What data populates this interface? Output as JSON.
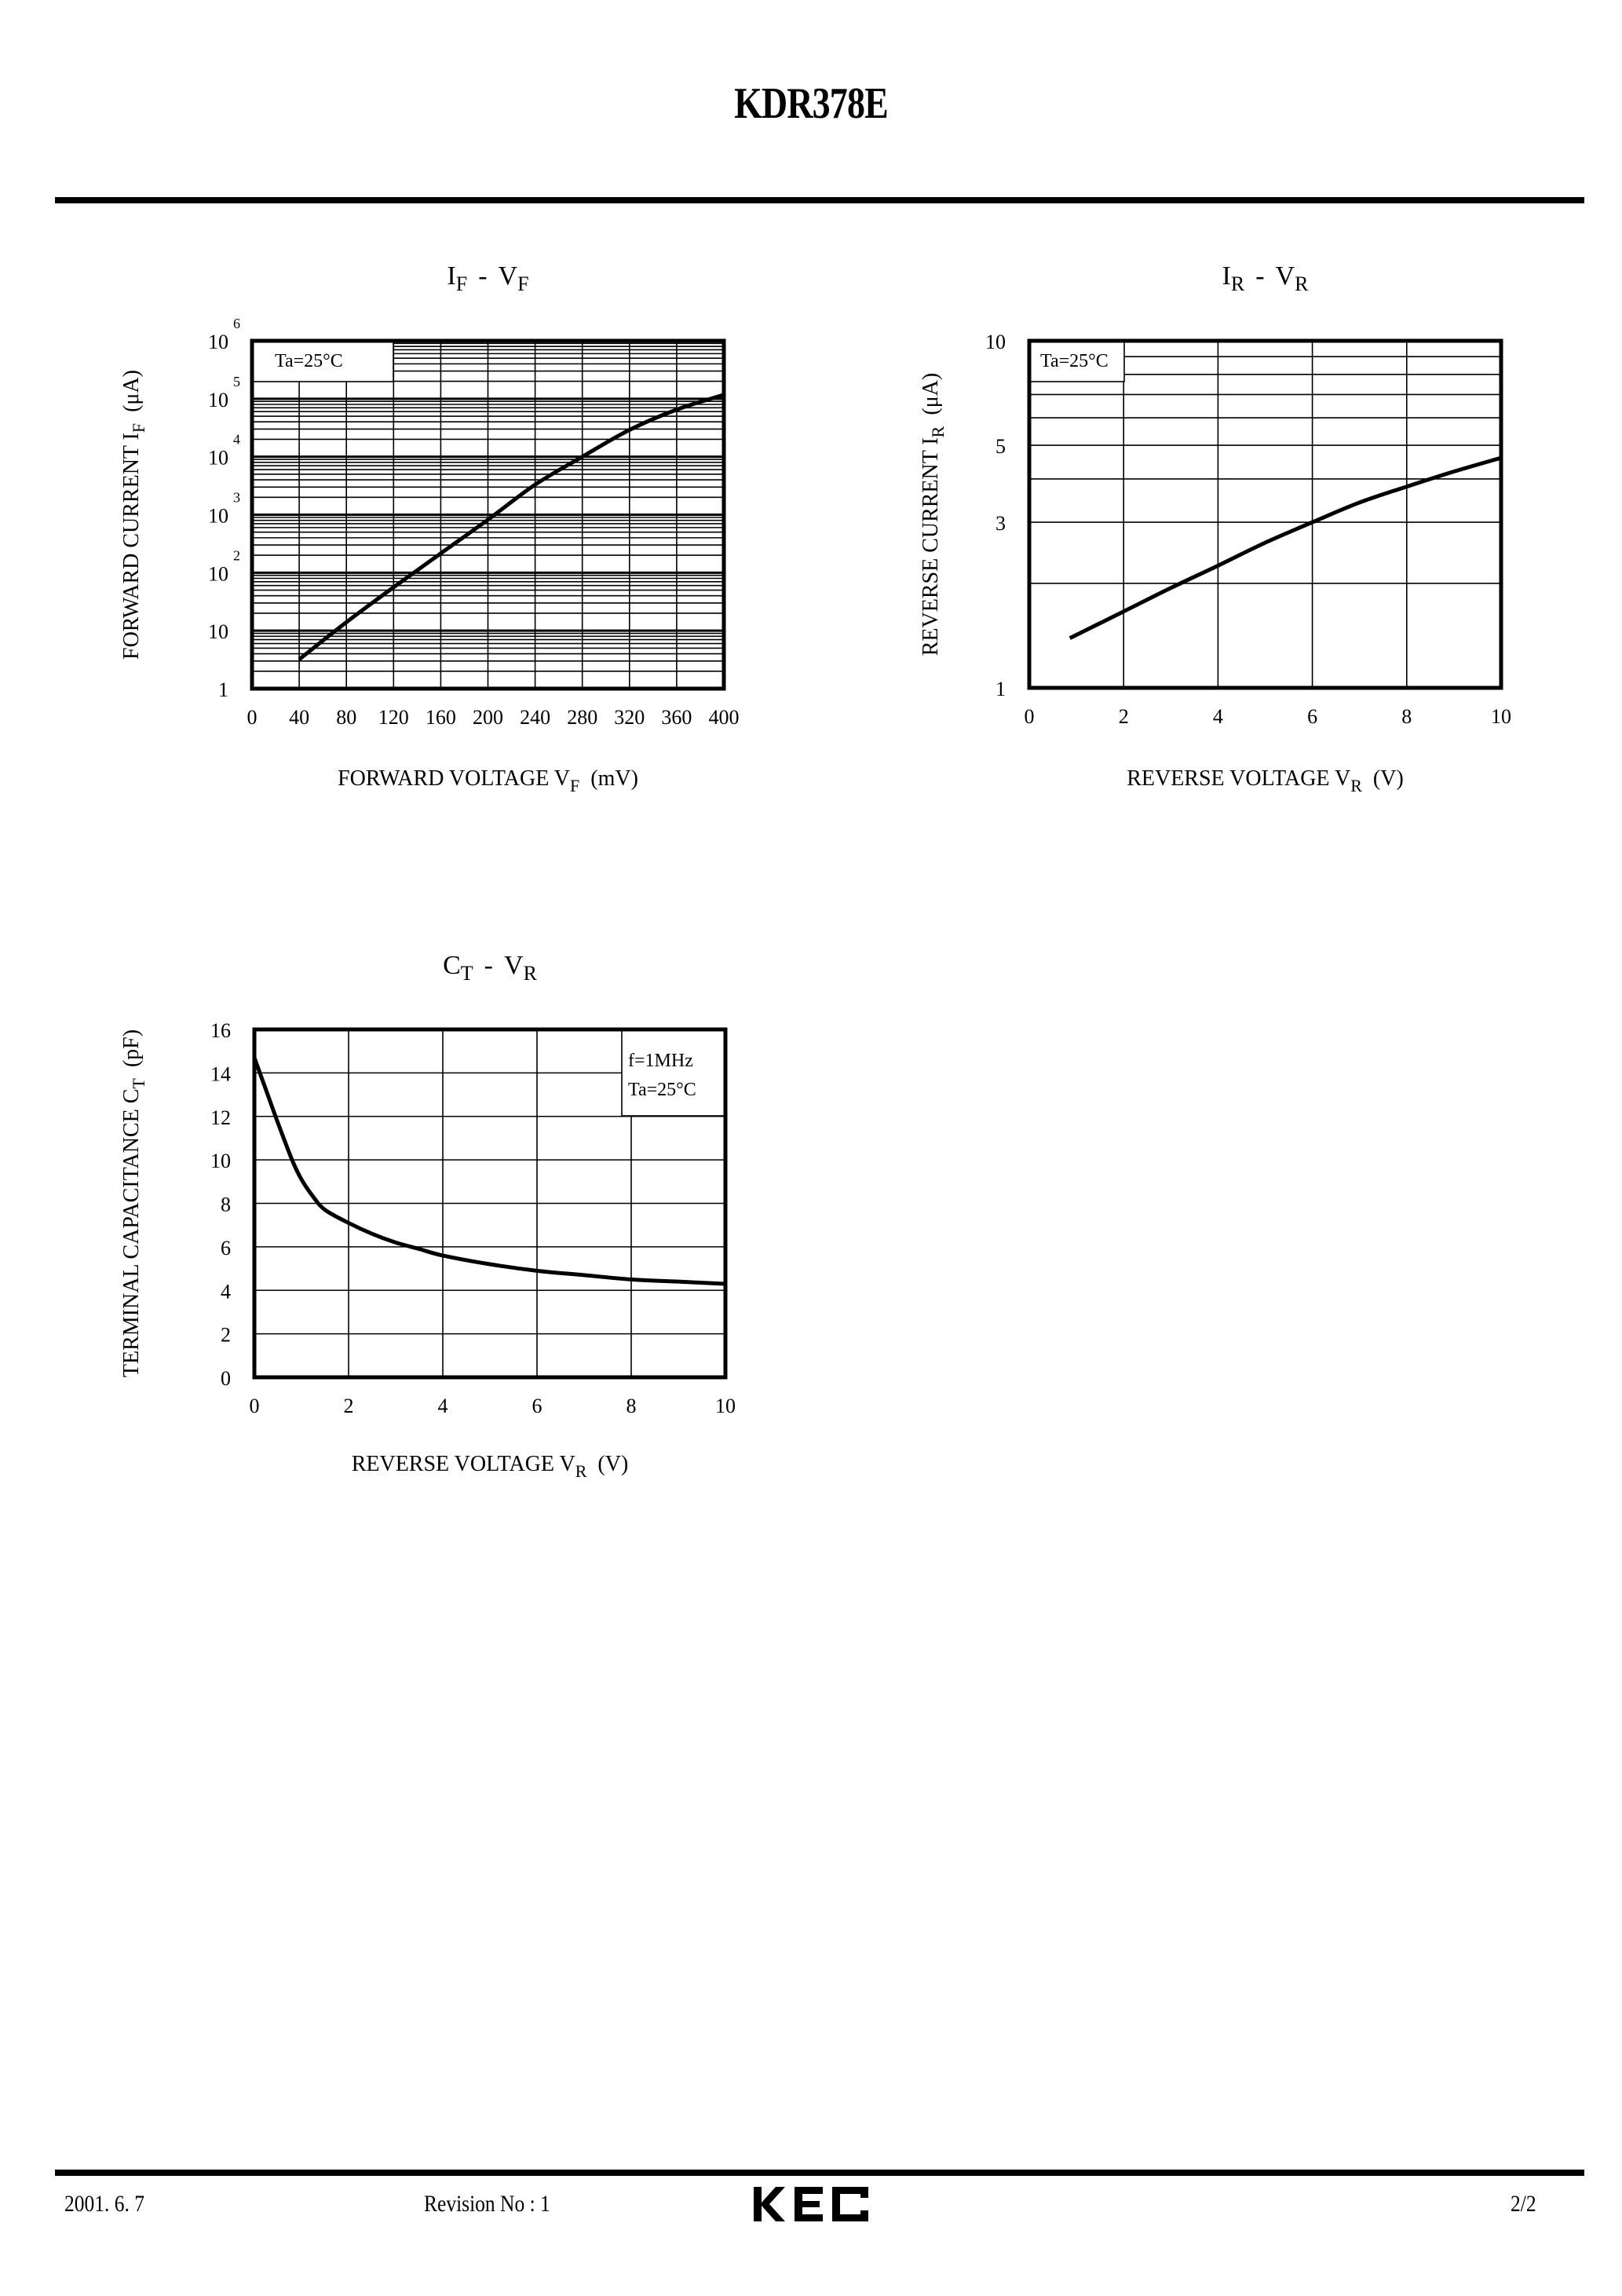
{
  "header": {
    "title": "KDR378E"
  },
  "footer": {
    "date": "2001. 6. 7",
    "revision": "Revision No : 1",
    "logo_text": "KEC",
    "page": "2/2"
  },
  "chart_data": [
    {
      "id": "if_vf",
      "type": "line",
      "title": "IF - VF",
      "title_main": "I",
      "title_sub": "F",
      "title_sep": "-",
      "title_main2": "V",
      "title_sub2": "F",
      "xlabel": "FORWARD VOLTAGE VF (mV)",
      "xlabel_main": "FORWARD VOLTAGE V",
      "xlabel_sub": "F",
      "xlabel_unit": "(mV)",
      "ylabel": "FORWARD CURRENT IF (μA)",
      "ylabel_main": "FORWARD CURRENT I",
      "ylabel_sub": "F",
      "ylabel_unit": "(μA)",
      "xscale": "linear",
      "yscale": "log",
      "xlim": [
        0,
        400
      ],
      "ylim": [
        1,
        1000000
      ],
      "xticks": [
        0,
        40,
        80,
        120,
        160,
        200,
        240,
        280,
        320,
        360,
        400
      ],
      "yticks": [
        {
          "v": 1,
          "base": "1",
          "exp": ""
        },
        {
          "v": 10,
          "base": "10",
          "exp": ""
        },
        {
          "v": 100,
          "base": "10",
          "exp": "2"
        },
        {
          "v": 1000,
          "base": "10",
          "exp": "3"
        },
        {
          "v": 10000,
          "base": "10",
          "exp": "4"
        },
        {
          "v": 100000,
          "base": "10",
          "exp": "5"
        },
        {
          "v": 1000000,
          "base": "10",
          "exp": "6"
        }
      ],
      "annotation": [
        "Ta=25°C"
      ],
      "grid": true,
      "series": [
        {
          "name": "IF",
          "x": [
            40,
            80,
            120,
            160,
            200,
            240,
            280,
            320,
            360,
            400
          ],
          "y": [
            3.2,
            14,
            56,
            215,
            820,
            3300,
            10000,
            29000,
            65000,
            117000
          ]
        }
      ]
    },
    {
      "id": "ir_vr",
      "type": "line",
      "title": "IR - VR",
      "title_main": "I",
      "title_sub": "R",
      "title_sep": "-",
      "title_main2": "V",
      "title_sub2": "R",
      "xlabel": "REVERSE VOLTAGE VR (V)",
      "xlabel_main": "REVERSE VOLTAGE V",
      "xlabel_sub": "R",
      "xlabel_unit": "(V)",
      "ylabel": "REVERSE CURRENT IR (μA)",
      "ylabel_main": "REVERSE CURRENT I",
      "ylabel_sub": "R",
      "ylabel_unit": "(μA)",
      "xscale": "linear",
      "yscale": "log",
      "xlim": [
        0,
        10
      ],
      "ylim": [
        1,
        10
      ],
      "xticks": [
        0,
        2,
        4,
        6,
        8,
        10
      ],
      "yticks": [
        {
          "v": 1,
          "base": "1",
          "exp": ""
        },
        {
          "v": 3,
          "base": "3",
          "exp": ""
        },
        {
          "v": 5,
          "base": "5",
          "exp": ""
        },
        {
          "v": 10,
          "base": "10",
          "exp": ""
        }
      ],
      "ygrid": [
        2,
        3,
        4,
        5,
        6,
        7,
        8,
        9
      ],
      "annotation": [
        "Ta=25°C"
      ],
      "grid": true,
      "series": [
        {
          "name": "IR",
          "x": [
            0.86,
            2,
            3,
            4,
            5,
            6,
            7,
            8,
            9,
            10
          ],
          "y": [
            1.39,
            1.66,
            1.94,
            2.25,
            2.62,
            3.0,
            3.42,
            3.8,
            4.2,
            4.6
          ]
        }
      ]
    },
    {
      "id": "ct_vr",
      "type": "line",
      "title": "CT - VR",
      "title_main": "C",
      "title_sub": "T",
      "title_sep": "-",
      "title_main2": "V",
      "title_sub2": "R",
      "xlabel": "REVERSE VOLTAGE VR (V)",
      "xlabel_main": "REVERSE VOLTAGE V",
      "xlabel_sub": "R",
      "xlabel_unit": "(V)",
      "ylabel": "TERMINAL CAPACITANCE CT (pF)",
      "ylabel_main": "TERMINAL CAPACITANCE C",
      "ylabel_sub": "T",
      "ylabel_unit": "(pF)",
      "xscale": "linear",
      "yscale": "linear",
      "xlim": [
        0,
        10
      ],
      "ylim": [
        0,
        16
      ],
      "xticks": [
        0,
        2,
        4,
        6,
        8,
        10
      ],
      "yticks": [
        {
          "v": 0,
          "base": "0",
          "exp": ""
        },
        {
          "v": 2,
          "base": "2",
          "exp": ""
        },
        {
          "v": 4,
          "base": "4",
          "exp": ""
        },
        {
          "v": 6,
          "base": "6",
          "exp": ""
        },
        {
          "v": 8,
          "base": "8",
          "exp": ""
        },
        {
          "v": 10,
          "base": "10",
          "exp": ""
        },
        {
          "v": 12,
          "base": "12",
          "exp": ""
        },
        {
          "v": 14,
          "base": "14",
          "exp": ""
        },
        {
          "v": 16,
          "base": "16",
          "exp": ""
        }
      ],
      "annotation": [
        "f=1MHz",
        "Ta=25°C"
      ],
      "grid": true,
      "series": [
        {
          "name": "CT",
          "x": [
            0,
            0.25,
            0.5,
            0.8,
            1.0,
            1.25,
            1.5,
            2,
            2.5,
            3,
            3.5,
            4,
            5,
            6,
            7,
            8,
            9,
            10
          ],
          "y": [
            14.7,
            13.2,
            11.7,
            10.0,
            9.1,
            8.3,
            7.7,
            7.1,
            6.6,
            6.2,
            5.9,
            5.6,
            5.2,
            4.9,
            4.7,
            4.5,
            4.4,
            4.3
          ]
        }
      ]
    }
  ]
}
